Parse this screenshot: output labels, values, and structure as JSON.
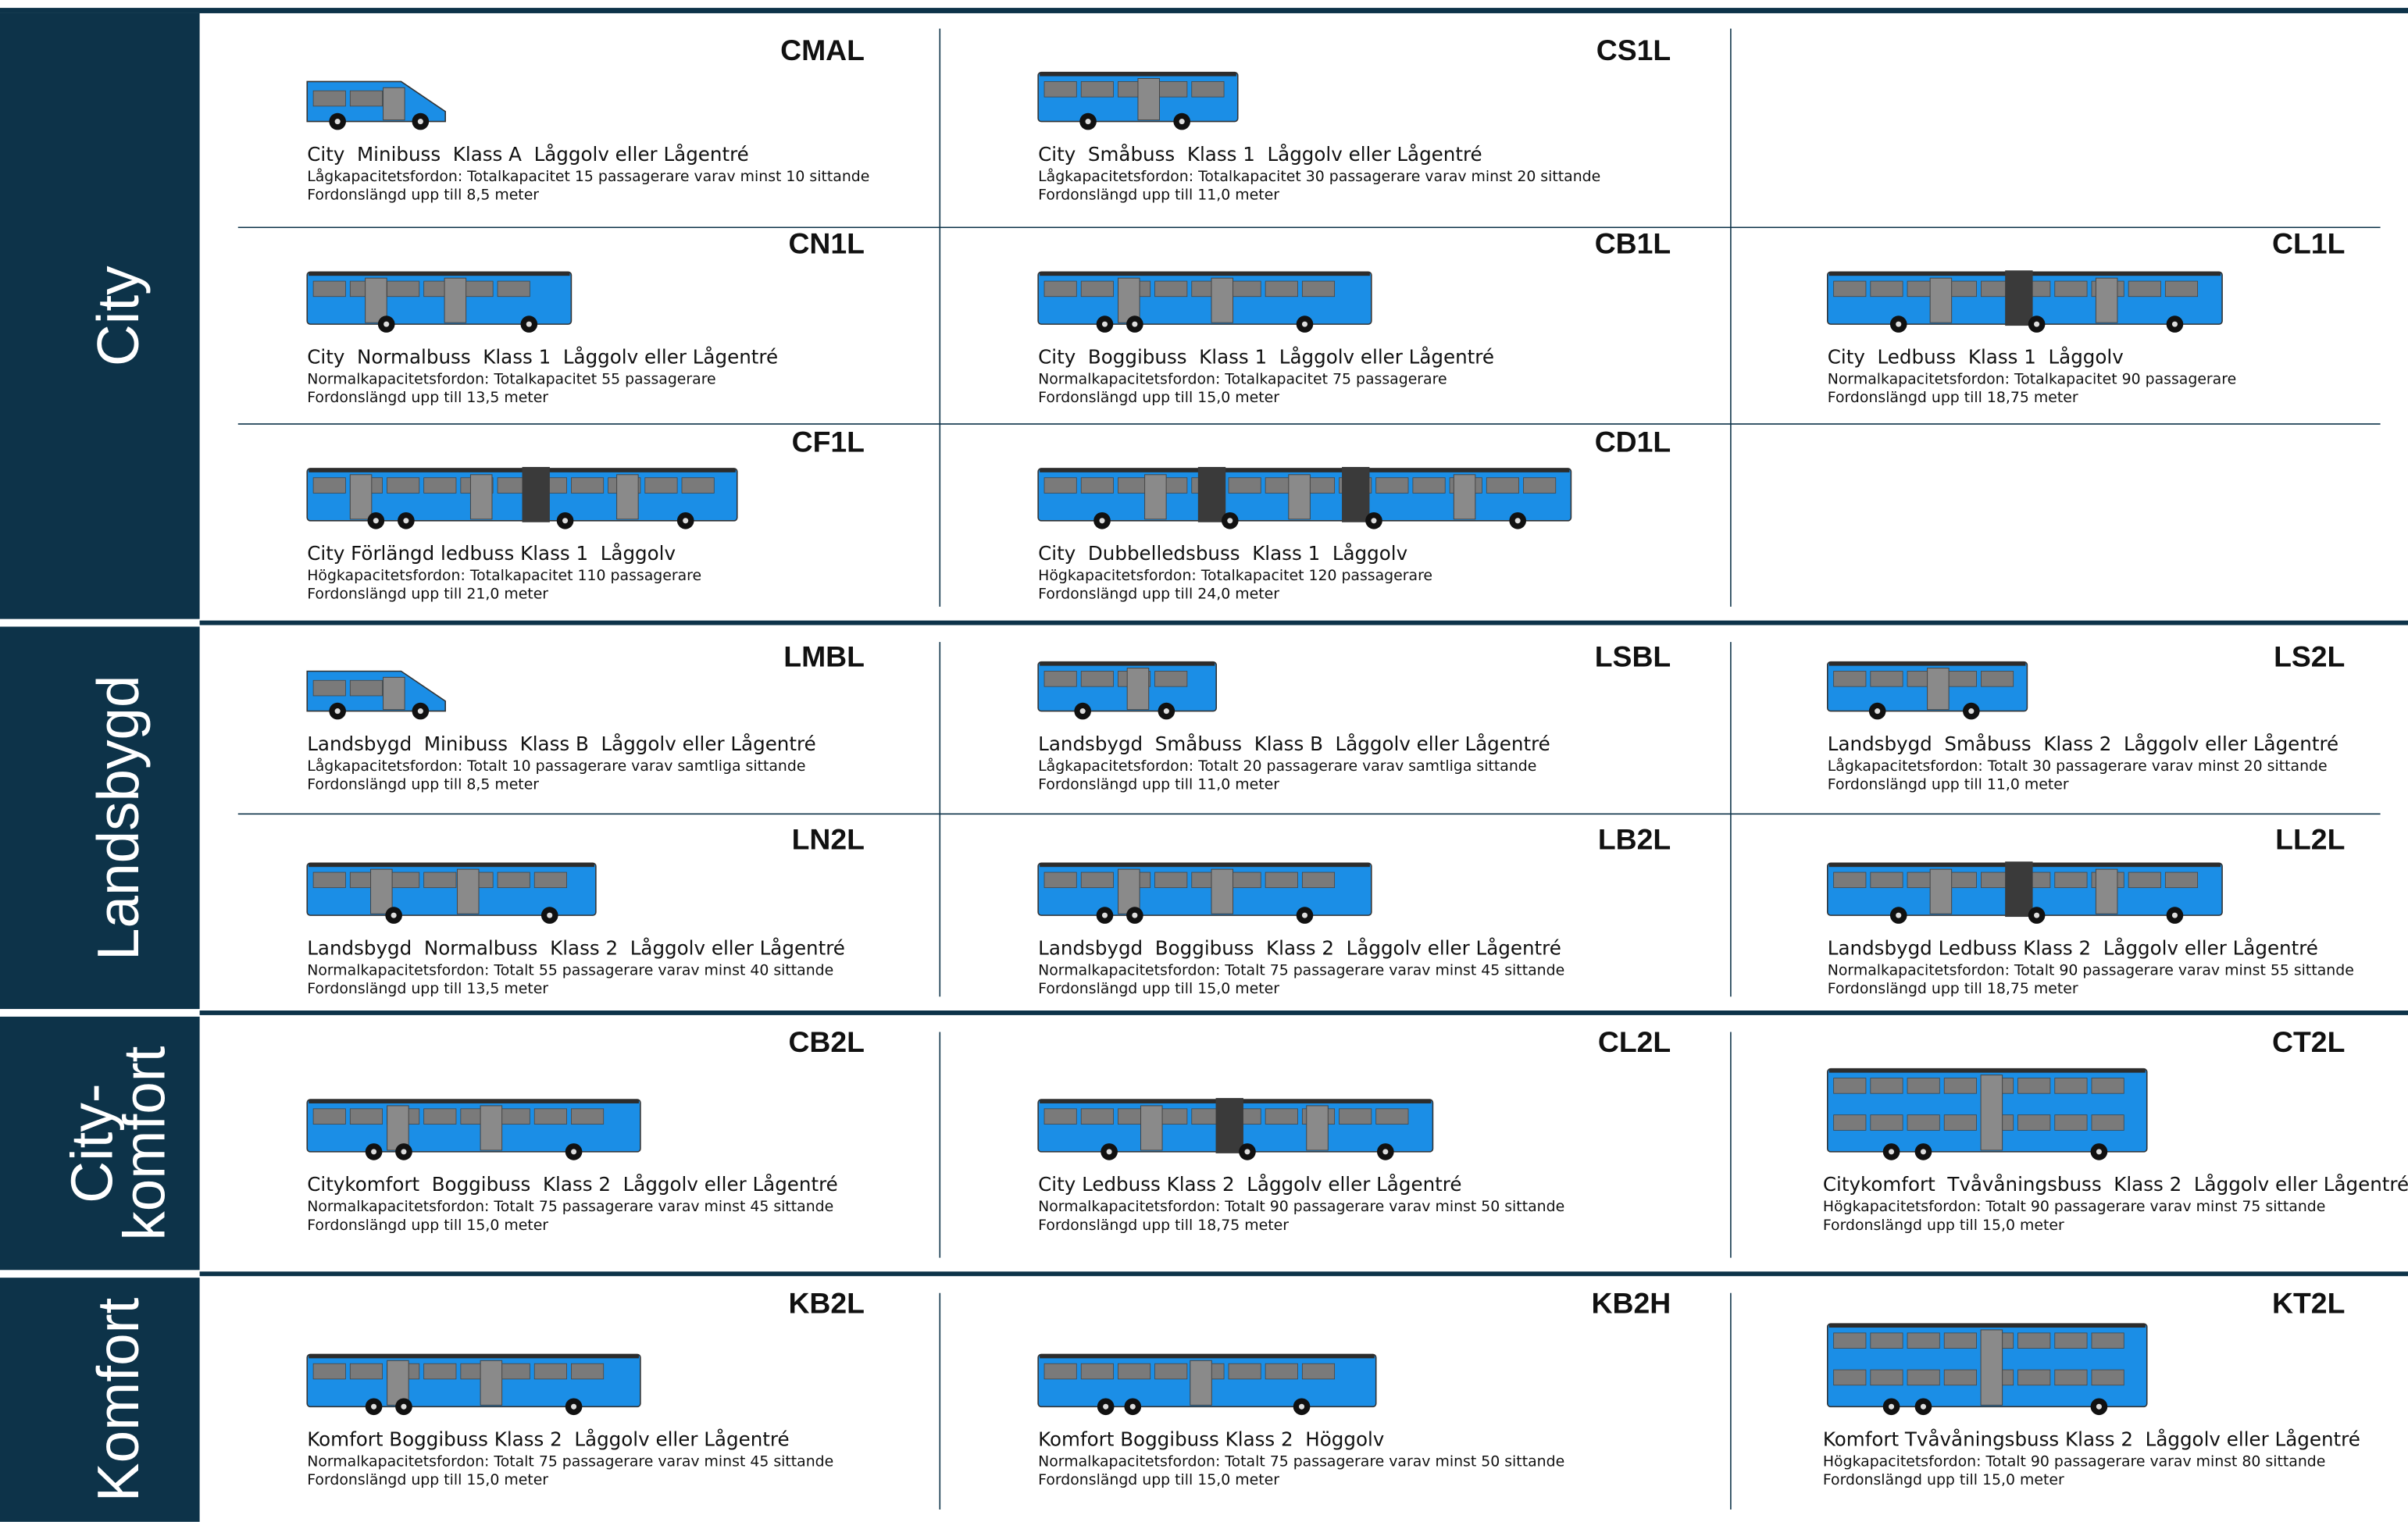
{
  "sections": [
    {
      "label": [
        "City"
      ],
      "rows": [
        [
          {
            "code": "CMAL",
            "title": "City  Minibuss  Klass A  Låggolv eller Lågentré",
            "lines": [
              "Lågkapacitetsfordon: Totalkapacitet 15 passagerare varav minst 10 sittande",
              "Fordonslängd upp till 8,5 meter"
            ]
          },
          {
            "code": "CS1L",
            "title": "City  Småbuss  Klass 1  Låggolv eller Lågentré",
            "lines": [
              "Lågkapacitetsfordon: Totalkapacitet 30 passagerare varav minst 20 sittande",
              "Fordonslängd upp till 11,0 meter"
            ]
          }
        ],
        [
          {
            "code": "CN1L",
            "title": "City  Normalbuss  Klass 1  Låggolv eller Lågentré",
            "lines": [
              "Normalkapacitetsfordon: Totalkapacitet 55 passagerare",
              "Fordonslängd upp till 13,5 meter"
            ]
          },
          {
            "code": "CB1L",
            "title": "City  Boggibuss  Klass 1  Låggolv eller Lågentré",
            "lines": [
              "Normalkapacitetsfordon: Totalkapacitet 75 passagerare",
              "Fordonslängd upp till 15,0 meter"
            ]
          },
          {
            "code": "CL1L",
            "title": "City  Ledbuss  Klass 1  Låggolv",
            "lines": [
              "Normalkapacitetsfordon: Totalkapacitet 90 passagerare",
              "Fordonslängd upp till 18,75 meter"
            ]
          }
        ],
        [
          {
            "code": "CF1L",
            "title": "City Förlängd ledbuss Klass 1  Låggolv",
            "lines": [
              "Högkapacitetsfordon: Totalkapacitet 110 passagerare",
              "Fordonslängd upp till 21,0 meter"
            ]
          },
          {
            "code": "CD1L",
            "title": "City  Dubbelledsbuss  Klass 1  Låggolv",
            "lines": [
              "Högkapacitetsfordon: Totalkapacitet 120 passagerare",
              "Fordonslängd upp till 24,0 meter"
            ]
          }
        ]
      ]
    },
    {
      "label": [
        "Landsbygd"
      ],
      "rows": [
        [
          {
            "code": "LMBL",
            "title": "Landsbygd  Minibuss  Klass B  Låggolv eller Lågentré",
            "lines": [
              "Lågkapacitetsfordon: Totalt 10 passagerare varav samtliga sittande",
              "Fordonslängd upp till 8,5 meter"
            ]
          },
          {
            "code": "LSBL",
            "title": "Landsbygd  Småbuss  Klass B  Låggolv eller Lågentré",
            "lines": [
              "Lågkapacitetsfordon: Totalt 20 passagerare varav samtliga sittande",
              "Fordonslängd upp till 11,0 meter"
            ]
          },
          {
            "code": "LS2L",
            "title": "Landsbygd  Småbuss  Klass 2  Låggolv eller Lågentré",
            "lines": [
              "Lågkapacitetsfordon: Totalt 30 passagerare varav minst 20 sittande",
              "Fordonslängd upp till 11,0 meter"
            ]
          }
        ],
        [
          {
            "code": "LN2L",
            "title": "Landsbygd  Normalbuss  Klass 2  Låggolv eller Lågentré",
            "lines": [
              "Normalkapacitetsfordon: Totalt 55 passagerare varav minst 40 sittande",
              "Fordonslängd upp till 13,5 meter"
            ]
          },
          {
            "code": "LB2L",
            "title": "Landsbygd  Boggibuss  Klass 2  Låggolv eller Lågentré",
            "lines": [
              "Normalkapacitetsfordon: Totalt 75 passagerare varav minst 45 sittande",
              "Fordonslängd upp till 15,0 meter"
            ]
          },
          {
            "code": "LL2L",
            "title": "Landsbygd Ledbuss Klass 2  Låggolv eller Lågentré",
            "lines": [
              "Normalkapacitetsfordon: Totalt 90 passagerare varav minst 55 sittande",
              "Fordonslängd upp till 18,75 meter"
            ]
          }
        ]
      ]
    },
    {
      "label": [
        "City-",
        "komfort"
      ],
      "rows": [
        [
          {
            "code": "CB2L",
            "title": "Citykomfort  Boggibuss  Klass 2  Låggolv eller Lågentré",
            "lines": [
              "Normalkapacitetsfordon: Totalt 75 passagerare varav minst 45 sittande",
              "Fordonslängd upp till 15,0 meter"
            ]
          },
          {
            "code": "CL2L",
            "title": "City Ledbuss Klass 2  Låggolv eller Lågentré",
            "lines": [
              "Normalkapacitetsfordon: Totalt 90 passagerare varav minst 50 sittande",
              "Fordonslängd upp till 18,75 meter"
            ]
          },
          {
            "code": "CT2L",
            "title": "Citykomfort  Tvåvåningsbuss  Klass 2  Låggolv eller Lågentré",
            "lines": [
              "Högkapacitetsfordon: Totalt 90 passagerare varav minst 75 sittande",
              "Fordonslängd upp till 15,0 meter"
            ]
          }
        ]
      ]
    },
    {
      "label": [
        "Komfort"
      ],
      "rows": [
        [
          {
            "code": "KB2L",
            "title": "Komfort Boggibuss Klass 2  Låggolv eller Lågentré",
            "lines": [
              "Normalkapacitetsfordon: Totalt 75 passagerare varav minst 45 sittande",
              "Fordonslängd upp till 15,0 meter"
            ]
          },
          {
            "code": "KB2H",
            "title": "Komfort Boggibuss Klass 2  Höggolv",
            "lines": [
              "Normalkapacitetsfordon: Totalt 75 passagerare varav minst 50 sittande",
              "Fordonslängd upp till 15,0 meter"
            ]
          },
          {
            "code": "KT2L",
            "title": "Komfort Tvåvåningsbuss Klass 2  Låggolv eller Lågentré",
            "lines": [
              "Högkapacitetsfordon: Totalt 90 passagerare varav minst 80 sittande",
              "Fordonslängd upp till 15,0 meter"
            ]
          }
        ]
      ]
    }
  ]
}
